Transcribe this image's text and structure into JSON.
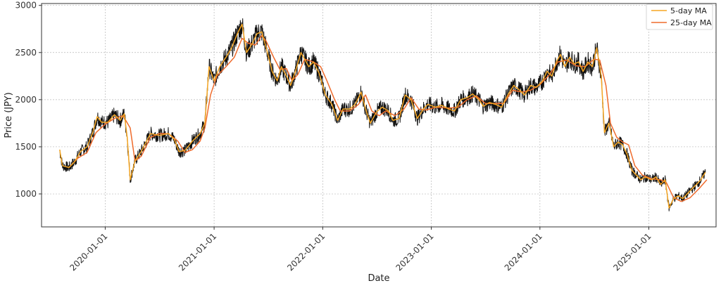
{
  "chart_data": {
    "type": "line",
    "title": "",
    "xlabel": "Date",
    "ylabel": "Price (JPY)",
    "x_range": [
      "2019-06-01",
      "2025-08-15"
    ],
    "ylim": [
      650,
      3020
    ],
    "x_ticks": [
      "2020-01-01",
      "2021-01-01",
      "2022-01-01",
      "2023-01-01",
      "2024-01-01",
      "2025-01-01"
    ],
    "y_ticks": [
      1000,
      1500,
      2000,
      2500,
      3000
    ],
    "grid": true,
    "legend_position": "top-right",
    "colors": {
      "price": "#111111",
      "ma5": "#f5a623",
      "ma25": "#ef6b2c"
    },
    "series": [
      {
        "name": "5-day MA",
        "key": "ma5",
        "points": [
          [
            "2019-08-01",
            1470
          ],
          [
            "2019-08-10",
            1300
          ],
          [
            "2019-09-01",
            1280
          ],
          [
            "2019-09-20",
            1340
          ],
          [
            "2019-10-10",
            1450
          ],
          [
            "2019-11-01",
            1500
          ],
          [
            "2019-11-20",
            1650
          ],
          [
            "2019-12-05",
            1820
          ],
          [
            "2019-12-20",
            1760
          ],
          [
            "2020-01-10",
            1760
          ],
          [
            "2020-02-01",
            1840
          ],
          [
            "2020-02-20",
            1780
          ],
          [
            "2020-03-05",
            1850
          ],
          [
            "2020-03-15",
            1600
          ],
          [
            "2020-03-25",
            1150
          ],
          [
            "2020-04-10",
            1350
          ],
          [
            "2020-05-01",
            1450
          ],
          [
            "2020-06-01",
            1640
          ],
          [
            "2020-07-01",
            1620
          ],
          [
            "2020-08-01",
            1640
          ],
          [
            "2020-08-20",
            1580
          ],
          [
            "2020-09-05",
            1450
          ],
          [
            "2020-09-25",
            1460
          ],
          [
            "2020-10-20",
            1560
          ],
          [
            "2020-11-15",
            1640
          ],
          [
            "2020-12-01",
            1750
          ],
          [
            "2020-12-15",
            2350
          ],
          [
            "2021-01-01",
            2200
          ],
          [
            "2021-01-20",
            2350
          ],
          [
            "2021-02-10",
            2450
          ],
          [
            "2021-03-01",
            2550
          ],
          [
            "2021-03-20",
            2700
          ],
          [
            "2021-04-05",
            2800
          ],
          [
            "2021-04-20",
            2500
          ],
          [
            "2021-05-10",
            2600
          ],
          [
            "2021-05-25",
            2700
          ],
          [
            "2021-06-10",
            2720
          ],
          [
            "2021-06-25",
            2550
          ],
          [
            "2021-07-15",
            2300
          ],
          [
            "2021-08-01",
            2200
          ],
          [
            "2021-08-15",
            2350
          ],
          [
            "2021-09-01",
            2250
          ],
          [
            "2021-09-15",
            2150
          ],
          [
            "2021-10-01",
            2300
          ],
          [
            "2021-10-20",
            2500
          ],
          [
            "2021-11-15",
            2350
          ],
          [
            "2021-12-01",
            2400
          ],
          [
            "2021-12-20",
            2280
          ],
          [
            "2022-01-10",
            2050
          ],
          [
            "2022-02-01",
            1950
          ],
          [
            "2022-02-20",
            1780
          ],
          [
            "2022-03-10",
            1900
          ],
          [
            "2022-04-01",
            1900
          ],
          [
            "2022-04-20",
            1950
          ],
          [
            "2022-05-10",
            2080
          ],
          [
            "2022-05-25",
            1900
          ],
          [
            "2022-06-10",
            1750
          ],
          [
            "2022-07-01",
            1870
          ],
          [
            "2022-07-20",
            1920
          ],
          [
            "2022-08-10",
            1880
          ],
          [
            "2022-08-25",
            1780
          ],
          [
            "2022-09-15",
            1800
          ],
          [
            "2022-10-05",
            2050
          ],
          [
            "2022-10-25",
            2000
          ],
          [
            "2022-11-15",
            1800
          ],
          [
            "2022-12-05",
            1900
          ],
          [
            "2022-12-20",
            1950
          ],
          [
            "2023-01-15",
            1920
          ],
          [
            "2023-02-05",
            1940
          ],
          [
            "2023-03-01",
            1900
          ],
          [
            "2023-03-20",
            1880
          ],
          [
            "2023-04-10",
            2000
          ],
          [
            "2023-05-01",
            2020
          ],
          [
            "2023-05-20",
            2060
          ],
          [
            "2023-06-10",
            2000
          ],
          [
            "2023-06-25",
            1930
          ],
          [
            "2023-07-15",
            1970
          ],
          [
            "2023-08-05",
            1950
          ],
          [
            "2023-08-25",
            1920
          ],
          [
            "2023-09-15",
            2050
          ],
          [
            "2023-10-05",
            2150
          ],
          [
            "2023-10-25",
            2100
          ],
          [
            "2023-11-10",
            2050
          ],
          [
            "2023-12-01",
            2150
          ],
          [
            "2023-12-20",
            2130
          ],
          [
            "2024-01-10",
            2200
          ],
          [
            "2024-01-25",
            2300
          ],
          [
            "2024-02-10",
            2250
          ],
          [
            "2024-02-25",
            2400
          ],
          [
            "2024-03-10",
            2480
          ],
          [
            "2024-03-25",
            2350
          ],
          [
            "2024-04-10",
            2450
          ],
          [
            "2024-04-25",
            2380
          ],
          [
            "2024-05-10",
            2400
          ],
          [
            "2024-05-25",
            2300
          ],
          [
            "2024-06-10",
            2400
          ],
          [
            "2024-06-25",
            2350
          ],
          [
            "2024-07-10",
            2550
          ],
          [
            "2024-07-25",
            2250
          ],
          [
            "2024-08-05",
            1650
          ],
          [
            "2024-08-20",
            1750
          ],
          [
            "2024-09-05",
            1500
          ],
          [
            "2024-09-20",
            1550
          ],
          [
            "2024-10-05",
            1520
          ],
          [
            "2024-10-20",
            1420
          ],
          [
            "2024-11-05",
            1250
          ],
          [
            "2024-11-20",
            1200
          ],
          [
            "2024-12-05",
            1150
          ],
          [
            "2024-12-20",
            1180
          ],
          [
            "2025-01-10",
            1150
          ],
          [
            "2025-01-25",
            1180
          ],
          [
            "2025-02-10",
            1100
          ],
          [
            "2025-02-25",
            1150
          ],
          [
            "2025-03-10",
            850
          ],
          [
            "2025-03-25",
            950
          ],
          [
            "2025-04-10",
            980
          ],
          [
            "2025-04-25",
            950
          ],
          [
            "2025-05-10",
            1000
          ],
          [
            "2025-05-25",
            1050
          ],
          [
            "2025-06-10",
            1100
          ],
          [
            "2025-06-25",
            1150
          ],
          [
            "2025-07-10",
            1230
          ]
        ]
      },
      {
        "name": "25-day MA",
        "key": "ma25",
        "points": [
          [
            "2019-09-01",
            1280
          ],
          [
            "2019-10-01",
            1380
          ],
          [
            "2019-11-01",
            1440
          ],
          [
            "2019-12-01",
            1650
          ],
          [
            "2020-01-01",
            1740
          ],
          [
            "2020-02-01",
            1800
          ],
          [
            "2020-03-01",
            1830
          ],
          [
            "2020-03-25",
            1700
          ],
          [
            "2020-04-10",
            1350
          ],
          [
            "2020-05-01",
            1400
          ],
          [
            "2020-06-01",
            1600
          ],
          [
            "2020-07-01",
            1640
          ],
          [
            "2020-08-01",
            1640
          ],
          [
            "2020-09-01",
            1560
          ],
          [
            "2020-09-25",
            1440
          ],
          [
            "2020-10-20",
            1470
          ],
          [
            "2020-11-15",
            1560
          ],
          [
            "2020-12-01",
            1700
          ],
          [
            "2020-12-20",
            2050
          ],
          [
            "2021-01-10",
            2250
          ],
          [
            "2021-02-10",
            2350
          ],
          [
            "2021-03-10",
            2450
          ],
          [
            "2021-04-05",
            2650
          ],
          [
            "2021-04-25",
            2600
          ],
          [
            "2021-05-20",
            2580
          ],
          [
            "2021-06-10",
            2680
          ],
          [
            "2021-06-25",
            2620
          ],
          [
            "2021-07-20",
            2450
          ],
          [
            "2021-08-10",
            2320
          ],
          [
            "2021-09-01",
            2330
          ],
          [
            "2021-09-20",
            2200
          ],
          [
            "2021-10-10",
            2270
          ],
          [
            "2021-11-01",
            2430
          ],
          [
            "2021-12-01",
            2400
          ],
          [
            "2021-12-25",
            2350
          ],
          [
            "2022-01-15",
            2200
          ],
          [
            "2022-02-10",
            2000
          ],
          [
            "2022-03-01",
            1880
          ],
          [
            "2022-04-01",
            1880
          ],
          [
            "2022-05-01",
            1950
          ],
          [
            "2022-05-25",
            2050
          ],
          [
            "2022-06-15",
            1880
          ],
          [
            "2022-07-10",
            1830
          ],
          [
            "2022-08-01",
            1880
          ],
          [
            "2022-09-01",
            1830
          ],
          [
            "2022-10-01",
            1900
          ],
          [
            "2022-10-25",
            2020
          ],
          [
            "2022-11-20",
            1900
          ],
          [
            "2022-12-15",
            1890
          ],
          [
            "2023-01-15",
            1920
          ],
          [
            "2023-03-01",
            1910
          ],
          [
            "2023-04-01",
            1920
          ],
          [
            "2023-05-01",
            2000
          ],
          [
            "2023-06-01",
            2040
          ],
          [
            "2023-07-01",
            1960
          ],
          [
            "2023-08-01",
            1960
          ],
          [
            "2023-09-01",
            1960
          ],
          [
            "2023-10-01",
            2100
          ],
          [
            "2023-11-01",
            2080
          ],
          [
            "2023-12-01",
            2100
          ],
          [
            "2024-01-01",
            2160
          ],
          [
            "2024-02-01",
            2260
          ],
          [
            "2024-03-01",
            2400
          ],
          [
            "2024-04-01",
            2420
          ],
          [
            "2024-05-01",
            2360
          ],
          [
            "2024-06-01",
            2350
          ],
          [
            "2024-07-01",
            2430
          ],
          [
            "2024-07-20",
            2420
          ],
          [
            "2024-08-10",
            2150
          ],
          [
            "2024-08-25",
            1750
          ],
          [
            "2024-09-15",
            1600
          ],
          [
            "2024-10-05",
            1550
          ],
          [
            "2024-10-25",
            1520
          ],
          [
            "2024-11-15",
            1300
          ],
          [
            "2024-12-10",
            1200
          ],
          [
            "2025-01-10",
            1160
          ],
          [
            "2025-02-10",
            1150
          ],
          [
            "2025-03-01",
            1120
          ],
          [
            "2025-03-25",
            960
          ],
          [
            "2025-04-20",
            920
          ],
          [
            "2025-05-20",
            960
          ],
          [
            "2025-06-20",
            1060
          ],
          [
            "2025-07-15",
            1150
          ]
        ]
      }
    ]
  }
}
